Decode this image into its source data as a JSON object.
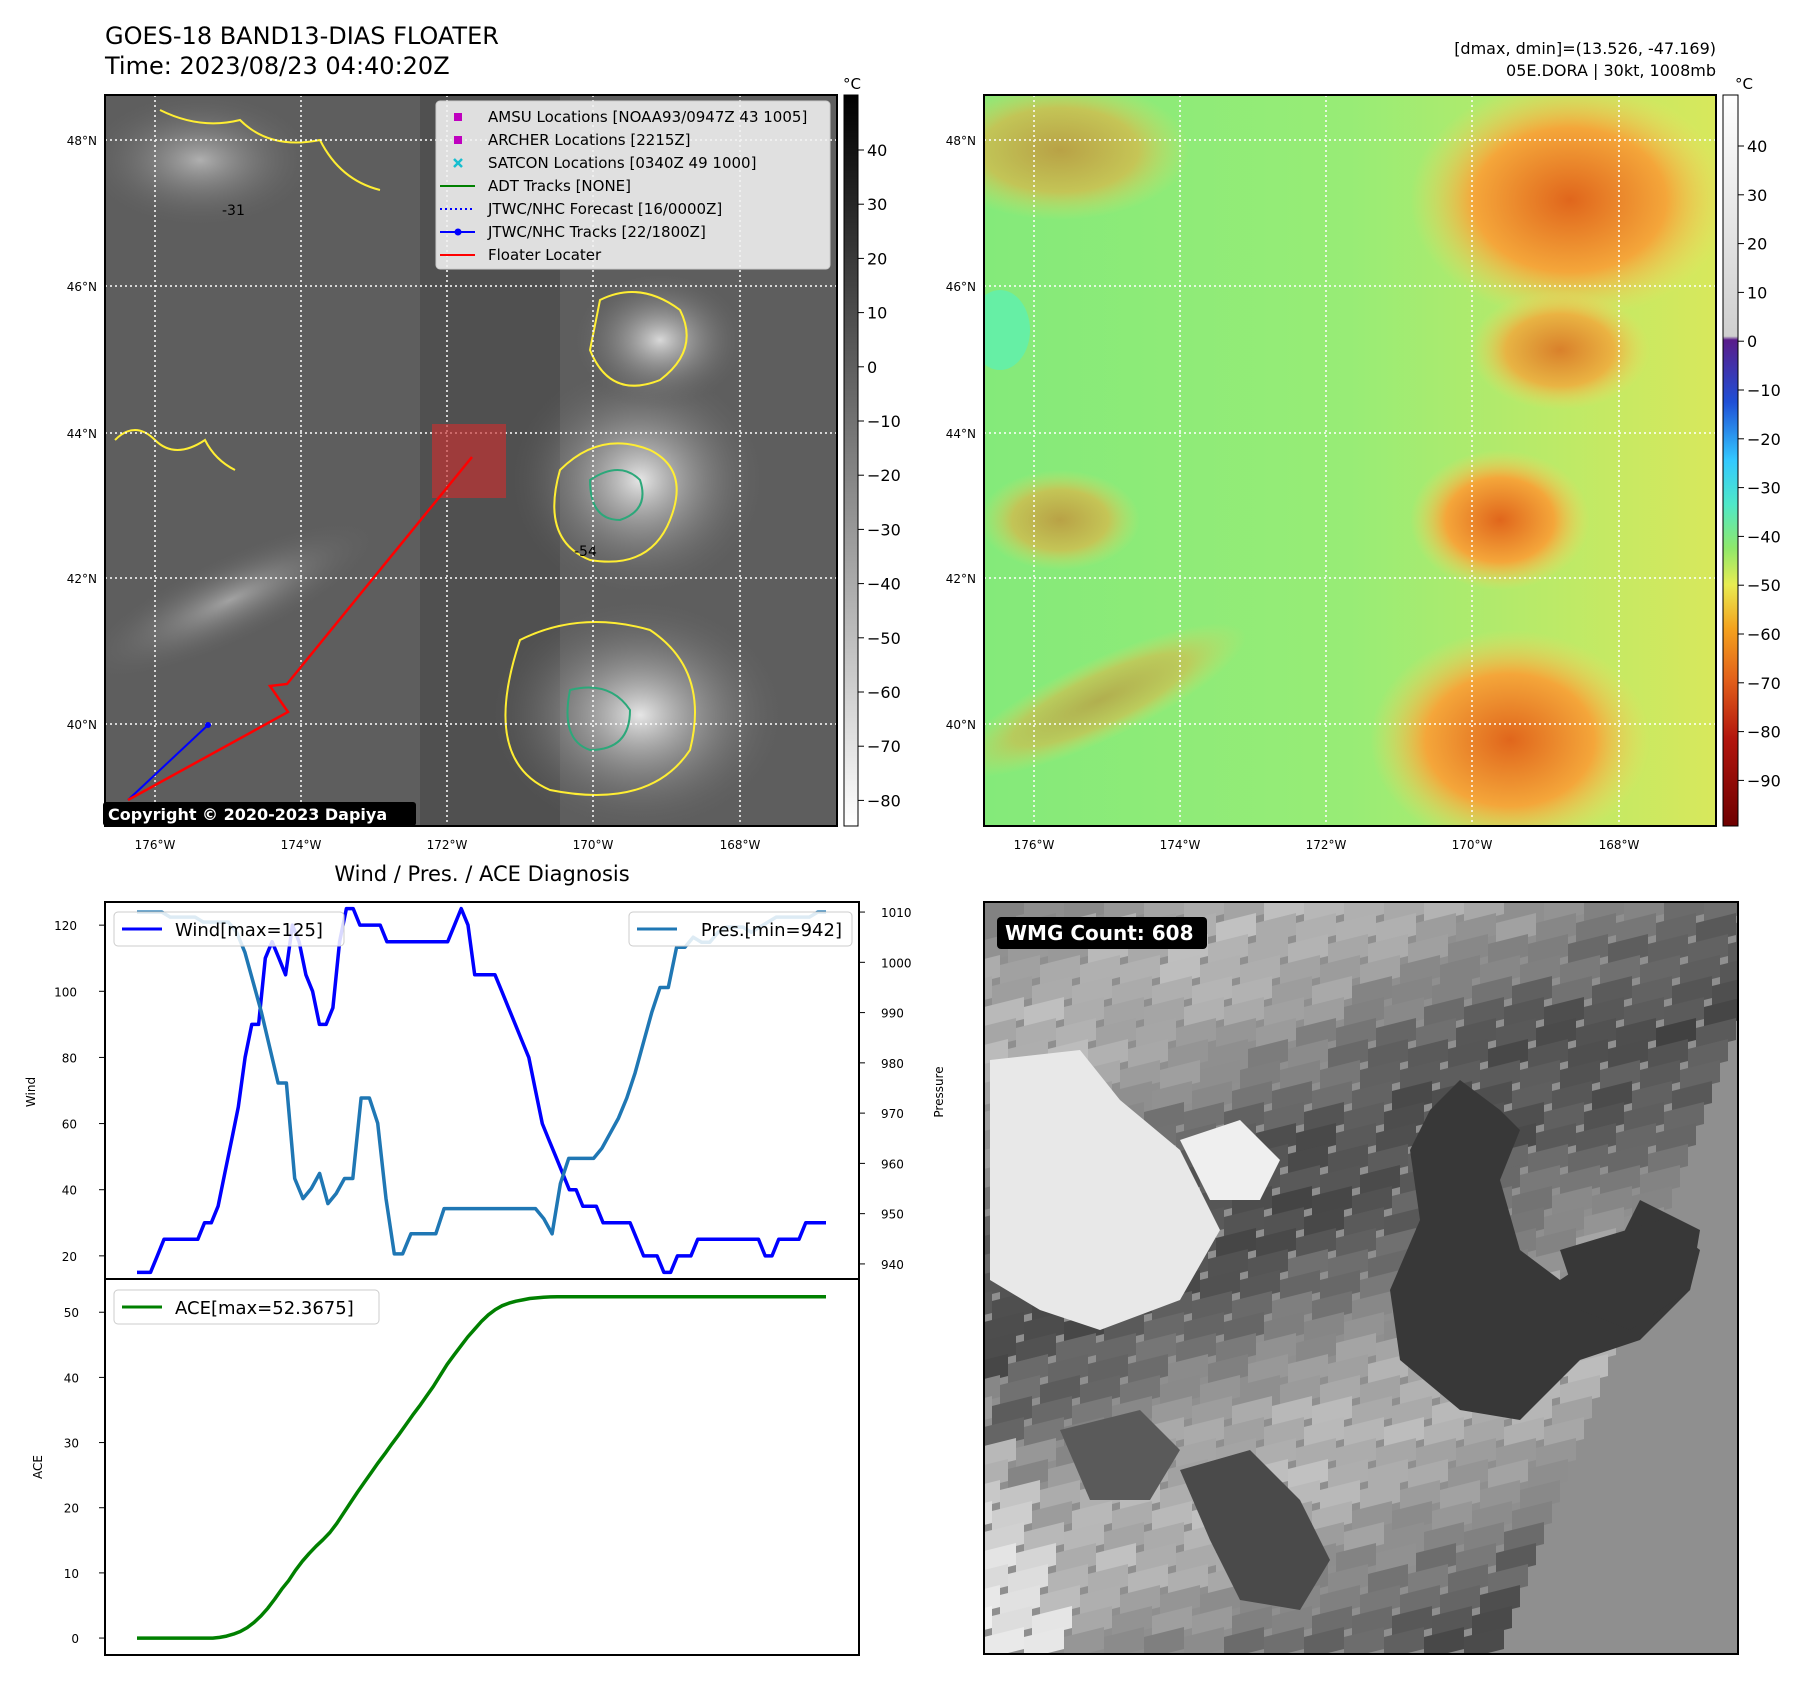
{
  "header": {
    "title_line1": "GOES-18 BAND13-DIAS FLOATER",
    "title_line2": "Time: 2023/08/23 04:40:20Z",
    "dmax_dmin": "[dmax, dmin]=(13.526, -47.169)",
    "storm_info": "05E.DORA | 30kt, 1008mb"
  },
  "maps": {
    "lat_labels": [
      "48°N",
      "46°N",
      "44°N",
      "42°N",
      "40°N"
    ],
    "lon_labels": [
      "176°W",
      "174°W",
      "172°W",
      "170°W",
      "168°W"
    ],
    "copyright": "Copyright © 2020-2023 Dapiya",
    "contour_labels": [
      "-31",
      "-54"
    ],
    "legend": [
      {
        "label": "AMSU Locations [NOAA93/0947Z 43 1005]",
        "color": "#bf00bf",
        "marker": "square"
      },
      {
        "label": "ARCHER Locations [2215Z]",
        "color": "#bf00bf",
        "marker": "square"
      },
      {
        "label": "SATCON Locations [0340Z 49 1000]",
        "color": "#17becf",
        "marker": "x"
      },
      {
        "label": "ADT Tracks [NONE]",
        "color": "#008000",
        "marker": "line"
      },
      {
        "label": "JTWC/NHC Forecast [16/0000Z]",
        "color": "#0000ff",
        "marker": "dotted"
      },
      {
        "label": "JTWC/NHC Tracks [22/1800Z]",
        "color": "#0000ff",
        "marker": "line-dot"
      },
      {
        "label": "Floater Locater",
        "color": "#ff0000",
        "marker": "line"
      }
    ],
    "gray_colorbar": {
      "unit": "°C",
      "ticks": [
        "40",
        "30",
        "20",
        "10",
        "0",
        "−10",
        "−20",
        "−30",
        "−40",
        "−50",
        "−60",
        "−70",
        "−80"
      ]
    },
    "color_colorbar": {
      "unit": "°C",
      "ticks": [
        "40",
        "30",
        "20",
        "10",
        "0",
        "−10",
        "−20",
        "−30",
        "−40",
        "−50",
        "−60",
        "−70",
        "−80",
        "−90"
      ]
    }
  },
  "wmg": {
    "label": "WMG Count: 608"
  },
  "chart_data": {
    "title": "Wind / Pres. / ACE Diagnosis",
    "wind_pres": {
      "type": "line",
      "ylabel": "Wind",
      "ylabel_right": "Pressure",
      "ylim": [
        13,
        127
      ],
      "ylim_right": [
        937,
        1012
      ],
      "yticks": [
        20,
        40,
        60,
        80,
        100,
        120
      ],
      "yticks_right": [
        940,
        950,
        960,
        970,
        980,
        990,
        1000,
        1010
      ],
      "series": [
        {
          "name": "Wind[max=125]",
          "color": "#0000ff",
          "values": [
            15,
            15,
            15,
            20,
            25,
            25,
            25,
            25,
            25,
            25,
            30,
            30,
            35,
            45,
            55,
            65,
            80,
            90,
            90,
            110,
            115,
            110,
            105,
            120,
            115,
            105,
            100,
            90,
            90,
            95,
            115,
            125,
            125,
            120,
            120,
            120,
            120,
            115,
            115,
            115,
            115,
            115,
            115,
            115,
            115,
            115,
            115,
            120,
            125,
            120,
            105,
            105,
            105,
            105,
            100,
            95,
            90,
            85,
            80,
            70,
            60,
            55,
            50,
            45,
            40,
            40,
            35,
            35,
            35,
            30,
            30,
            30,
            30,
            30,
            25,
            20,
            20,
            20,
            15,
            15,
            20,
            20,
            20,
            25,
            25,
            25,
            25,
            25,
            25,
            25,
            25,
            25,
            25,
            20,
            20,
            25,
            25,
            25,
            25,
            30,
            30,
            30,
            30
          ]
        },
        {
          "name": "Pres.[min=942]",
          "color": "#1f77b4",
          "values": [
            1010,
            1010,
            1010,
            1010,
            1009,
            1009,
            1009,
            1009,
            1008,
            1008,
            1008,
            1008,
            1006,
            1002,
            996,
            990,
            983,
            976,
            976,
            957,
            953,
            955,
            958,
            952,
            954,
            957,
            957,
            973,
            973,
            968,
            953,
            942,
            942,
            946,
            946,
            946,
            946,
            951,
            951,
            951,
            951,
            951,
            951,
            951,
            951,
            951,
            951,
            951,
            951,
            949,
            946,
            956,
            961,
            961,
            961,
            961,
            963,
            966,
            969,
            973,
            978,
            984,
            990,
            995,
            995,
            1003,
            1003,
            1005,
            1004,
            1004,
            1006,
            1007,
            1007,
            1007,
            1006,
            1007,
            1008,
            1009,
            1009,
            1009,
            1009,
            1009,
            1010,
            1010
          ]
        }
      ]
    },
    "ace": {
      "type": "line",
      "ylabel": "ACE",
      "ylim": [
        -2.6,
        55.1
      ],
      "yticks": [
        0,
        10,
        20,
        30,
        40,
        50
      ],
      "series": [
        {
          "name": "ACE[max=52.3675]",
          "color": "#008000",
          "values": [
            0,
            0,
            0,
            0,
            0,
            0,
            0,
            0,
            0,
            0,
            0,
            0,
            0.1,
            0.3,
            0.6,
            1.0,
            1.6,
            2.4,
            3.4,
            4.6,
            6.0,
            7.5,
            8.8,
            10.4,
            11.8,
            13.0,
            14.1,
            15.1,
            16.2,
            17.6,
            19.2,
            20.8,
            22.4,
            23.9,
            25.4,
            26.9,
            28.3,
            29.8,
            31.2,
            32.7,
            34.2,
            35.6,
            37.1,
            38.6,
            40.3,
            42.0,
            43.4,
            44.8,
            46.2,
            47.4,
            48.6,
            49.6,
            50.4,
            51.0,
            51.4,
            51.7,
            51.9,
            52.1,
            52.2,
            52.3,
            52.35,
            52.3675,
            52.3675,
            52.3675,
            52.3675,
            52.3675,
            52.3675,
            52.3675,
            52.3675,
            52.3675,
            52.3675,
            52.3675,
            52.3675,
            52.3675,
            52.3675,
            52.3675,
            52.3675,
            52.3675,
            52.3675,
            52.3675,
            52.3675,
            52.3675,
            52.3675,
            52.3675,
            52.3675,
            52.3675,
            52.3675,
            52.3675,
            52.3675,
            52.3675,
            52.3675,
            52.3675,
            52.3675,
            52.3675,
            52.3675,
            52.3675,
            52.3675,
            52.3675,
            52.3675,
            52.3675,
            52.3675
          ]
        }
      ]
    }
  }
}
